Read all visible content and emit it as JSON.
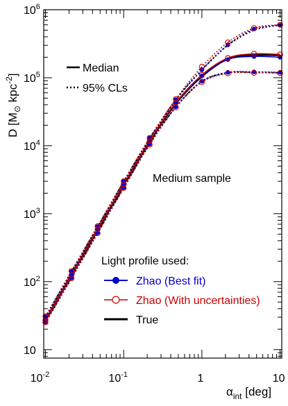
{
  "chart_data": {
    "type": "line",
    "title": "",
    "ylabel": "D [M_⊙ kpc^-2]",
    "ylabel_parts": {
      "main": "D [M",
      "sub": "⊙",
      "unit": " kpc",
      "sup": "-2",
      "close": "]"
    },
    "xlabel_parts": {
      "main": "α",
      "sub": "int",
      "unit": "  [deg]"
    },
    "x_scale": "log",
    "y_scale": "log",
    "xlim": [
      0.0095,
      10.5
    ],
    "ylim": [
      7.5,
      1000000
    ],
    "x_ticks": [
      {
        "base": "10",
        "exp": "-2",
        "value": 0.01
      },
      {
        "base": "10",
        "exp": "-1",
        "value": 0.1
      },
      {
        "base": "1",
        "exp": "",
        "value": 1
      },
      {
        "base": "10",
        "exp": "",
        "value": 10
      }
    ],
    "y_ticks": [
      {
        "base": "10",
        "exp": "",
        "value": 10
      },
      {
        "base": "10",
        "exp": "2",
        "value": 100
      },
      {
        "base": "10",
        "exp": "3",
        "value": 1000
      },
      {
        "base": "10",
        "exp": "4",
        "value": 10000
      },
      {
        "base": "10",
        "exp": "5",
        "value": 100000
      },
      {
        "base": "10",
        "exp": "6",
        "value": 1000000
      }
    ],
    "x": [
      0.01,
      0.0215,
      0.0464,
      0.1,
      0.215,
      0.464,
      1.0,
      2.15,
      4.64,
      10.0
    ],
    "series": [
      {
        "role": "true_median",
        "color": "#000000",
        "style": "solid",
        "marker": "none",
        "values": [
          27,
          125,
          580,
          2650,
          11600,
          42000,
          105000,
          190000,
          215000,
          215000
        ]
      },
      {
        "role": "true_upper",
        "color": "#000000",
        "style": "dotted",
        "marker": "none",
        "values": [
          30,
          140,
          640,
          2950,
          12800,
          47000,
          130000,
          300000,
          500000,
          600000
        ]
      },
      {
        "role": "true_lower",
        "color": "#000000",
        "style": "dotted",
        "marker": "none",
        "values": [
          25,
          113,
          520,
          2400,
          10500,
          37000,
          88000,
          118000,
          120000,
          118000
        ]
      },
      {
        "role": "zhao_best_median",
        "color": "#0000cc",
        "style": "solid",
        "marker": "filled-circle",
        "values": [
          27.5,
          126,
          585,
          2680,
          11700,
          42500,
          106000,
          185000,
          205000,
          200000
        ]
      },
      {
        "role": "zhao_best_upper",
        "color": "#0000cc",
        "style": "dotted",
        "marker": "filled-circle",
        "values": [
          30.5,
          141,
          645,
          2980,
          12900,
          47500,
          131000,
          305000,
          520000,
          590000
        ]
      },
      {
        "role": "zhao_best_lower",
        "color": "#0000cc",
        "style": "dotted",
        "marker": "filled-circle",
        "values": [
          25.5,
          114,
          525,
          2420,
          10600,
          37500,
          89000,
          120000,
          122000,
          120000
        ]
      },
      {
        "role": "zhao_unc_median",
        "color": "#cc0000",
        "style": "solid",
        "marker": "open-circle",
        "values": [
          27.2,
          124,
          590,
          2700,
          11800,
          43000,
          110000,
          195000,
          225000,
          220000
        ]
      },
      {
        "role": "zhao_unc_upper",
        "color": "#cc0000",
        "style": "dotted",
        "marker": "open-circle",
        "values": [
          31,
          143,
          655,
          3000,
          13000,
          48500,
          145000,
          330000,
          540000,
          600000
        ]
      },
      {
        "role": "zhao_unc_lower",
        "color": "#cc0000",
        "style": "dotted",
        "marker": "open-circle",
        "values": [
          25.2,
          112,
          515,
          2380,
          10400,
          36500,
          86000,
          116000,
          118000,
          117000
        ]
      }
    ],
    "style_legend": [
      {
        "label": "Median",
        "style": "solid"
      },
      {
        "label": "95% CLs",
        "style": "dotted"
      }
    ],
    "annotation": "Medium sample",
    "legend": {
      "title": "Light profile used:",
      "entries": [
        {
          "label": "Zhao (Best fit)",
          "color": "#0000cc",
          "marker": "filled-circle"
        },
        {
          "label": "Zhao (With uncertainties)",
          "color": "#cc0000",
          "marker": "open-circle"
        },
        {
          "label": "True",
          "color": "#000000",
          "marker": "none"
        }
      ]
    }
  }
}
